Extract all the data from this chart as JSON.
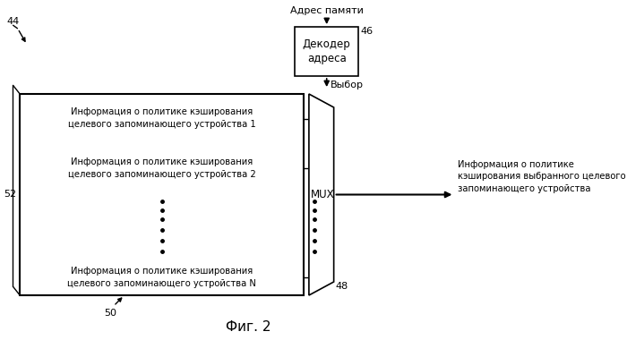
{
  "fig_label": "Фиг. 2",
  "label_44": "44",
  "label_46": "46",
  "label_48": "48",
  "label_50": "50",
  "label_52": "52",
  "decoder_label": "Декодер\nадреса",
  "mux_label": "MUX",
  "addr_label": "Адрес памяти",
  "select_label": "Выбор",
  "row1_text": "Информация о политике кэширования\nцелевого запоминающего устройства 1",
  "row2_text": "Информация о политике кэширования\nцелевого запоминающего устройства 2",
  "rowN_text": "Информация о политике кэширования\nцелевого запоминающего устройства N",
  "output_text": "Информация о политике\nкэширования выбранного целевого\nзапоминающего устройства",
  "bg_color": "#ffffff",
  "text_color": "#000000",
  "fontsize_main": 7.2,
  "fontsize_label": 8.0,
  "fontsize_fig": 11
}
